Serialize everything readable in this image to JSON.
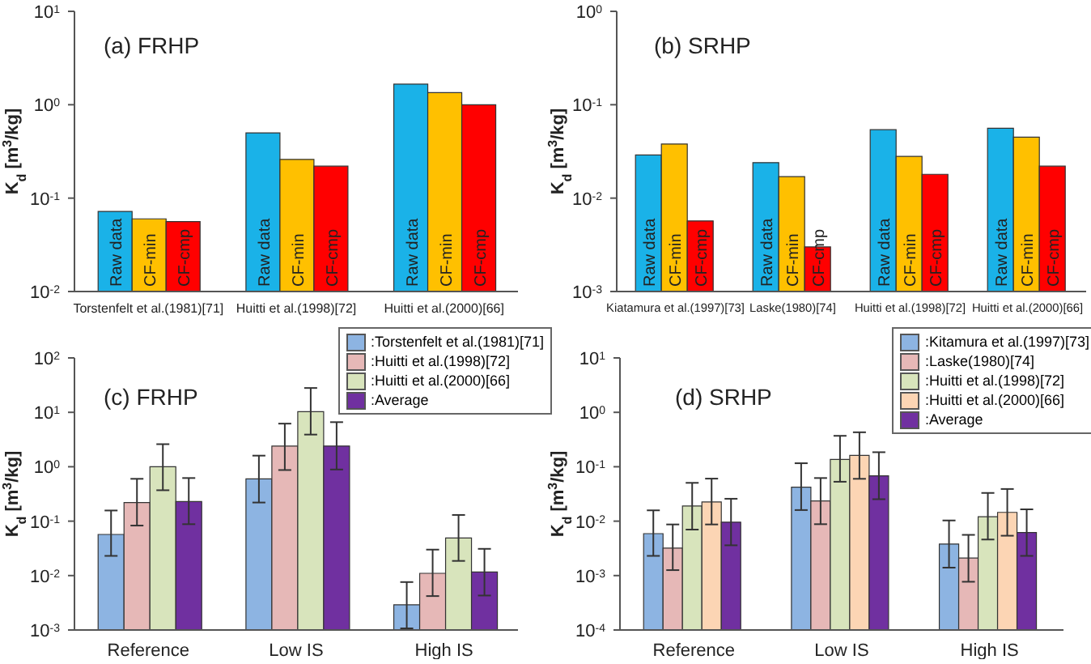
{
  "chart_data": [
    {
      "type": "bar",
      "title": "(a) FRHP",
      "ylabel": "K$_{d}$ [m$^{3}$/kg]",
      "categories": [
        "Torstenfelt et al.(1981)[71]",
        "Huitti et al.(1998)[72]",
        "Huitti et al.(2000)[66]"
      ],
      "series": [
        {
          "name": "Raw data",
          "color": "#1ab2e8",
          "values": [
            0.072,
            0.5,
            1.66
          ]
        },
        {
          "name": "CF-min",
          "color": "#ffc000",
          "values": [
            0.06,
            0.26,
            1.35
          ]
        },
        {
          "name": "CF-cmp",
          "color": "#ff0000",
          "values": [
            0.056,
            0.22,
            1.0
          ]
        }
      ],
      "log": "y",
      "ylim": [
        0.01,
        10
      ],
      "yticks": [
        {
          "value": 0.01,
          "label": "10$^{-2}$"
        },
        {
          "value": 0.1,
          "label": "10$^{-1}$"
        },
        {
          "value": 1,
          "label": "10$^{0}$"
        },
        {
          "value": 10,
          "label": "10$^{1}$"
        }
      ],
      "grid": false,
      "legend": false
    },
    {
      "type": "bar",
      "title": "(b) SRHP",
      "ylabel": "K$_{d}$ [m$^{3}$/kg]",
      "categories": [
        "Kiatamura et al.(1997)[73]",
        "Laske(1980)[74]",
        "Huitti et al.(1998)[72]",
        "Huitti et al.(2000)[66]"
      ],
      "series": [
        {
          "name": "Raw data",
          "color": "#1ab2e8",
          "values": [
            0.029,
            0.024,
            0.054,
            0.056
          ]
        },
        {
          "name": "CF-min",
          "color": "#ffc000",
          "values": [
            0.038,
            0.017,
            0.028,
            0.045
          ]
        },
        {
          "name": "CF-cmp",
          "color": "#ff0000",
          "values": [
            0.0057,
            0.003,
            0.018,
            0.022
          ]
        }
      ],
      "log": "y",
      "ylim": [
        0.001,
        1
      ],
      "yticks": [
        {
          "value": 0.001,
          "label": "10$^{-3}$"
        },
        {
          "value": 0.01,
          "label": "10$^{-2}$"
        },
        {
          "value": 0.1,
          "label": "10$^{-1}$"
        },
        {
          "value": 1,
          "label": "10$^{0}$"
        }
      ],
      "grid": false,
      "legend": false
    },
    {
      "type": "bar",
      "title": "(c) FRHP",
      "ylabel": "K$_{d}$ [m$^{3}$/kg]",
      "categories": [
        "Reference",
        "Low IS",
        "High IS"
      ],
      "series": [
        {
          "name": ":Torstenfelt et al.(1981)[71]",
          "color": "#8db4e2",
          "values": [
            0.057,
            0.6,
            0.0029
          ],
          "errors": [
            [
              0.023,
              0.157
            ],
            [
              0.22,
              1.6
            ],
            [
              0.00107,
              0.0076
            ]
          ]
        },
        {
          "name": ":Huitti et al.(1998)[72]",
          "color": "#e6b8b7",
          "values": [
            0.22,
            2.4,
            0.011
          ],
          "errors": [
            [
              0.083,
              0.6
            ],
            [
              0.87,
              6.2
            ],
            [
              0.0042,
              0.03
            ]
          ]
        },
        {
          "name": ":Huitti et al.(2000)[66]",
          "color": "#d8e4bc",
          "values": [
            1.0,
            10.3,
            0.049
          ],
          "errors": [
            [
              0.37,
              2.6
            ],
            [
              3.9,
              28
            ],
            [
              0.0186,
              0.13
            ]
          ]
        },
        {
          "name": ":Average",
          "color": "#7030a0",
          "values": [
            0.23,
            2.4,
            0.0116
          ],
          "errors": [
            [
              0.088,
              0.62
            ],
            [
              0.89,
              6.6
            ],
            [
              0.0043,
              0.031
            ]
          ]
        }
      ],
      "log": "y",
      "ylim": [
        0.001,
        100
      ],
      "yticks": [
        {
          "value": 0.001,
          "label": "10$^{-3}$"
        },
        {
          "value": 0.01,
          "label": "10$^{-2}$"
        },
        {
          "value": 0.1,
          "label": "10$^{-1}$"
        },
        {
          "value": 1,
          "label": "10$^{0}$"
        },
        {
          "value": 10,
          "label": "10$^{1}$"
        },
        {
          "value": 100,
          "label": "10$^{2}$"
        }
      ],
      "grid": false,
      "legend": "top right"
    },
    {
      "type": "bar",
      "title": "(d) SRHP",
      "ylabel": "K$_{d}$ [m$^{3}$/kg]",
      "categories": [
        "Reference",
        "Low IS",
        "High IS"
      ],
      "series": [
        {
          "name": ":Kitamura et al.(1997)[73]",
          "color": "#8db4e2",
          "values": [
            0.0059,
            0.042,
            0.0038
          ],
          "errors": [
            [
              0.0023,
              0.0158
            ],
            [
              0.016,
              0.116
            ],
            [
              0.0014,
              0.0103
            ]
          ]
        },
        {
          "name": ":Laske(1980)[74]",
          "color": "#e6b8b7",
          "values": [
            0.0032,
            0.0236,
            0.0021
          ],
          "errors": [
            [
              0.00126,
              0.0087
            ],
            [
              0.0088,
              0.062
            ],
            [
              0.00077,
              0.0056
            ]
          ]
        },
        {
          "name": ":Huitti et al.(1998)[72]",
          "color": "#d8e4bc",
          "values": [
            0.019,
            0.136,
            0.0121
          ],
          "errors": [
            [
              0.007,
              0.0506
            ],
            [
              0.053,
              0.37
            ],
            [
              0.0046,
              0.033
            ]
          ]
        },
        {
          "name": ":Huitti et al.(2000)[66]",
          "color": "#fcd5b4",
          "values": [
            0.0226,
            0.162,
            0.0145
          ],
          "errors": [
            [
              0.0087,
              0.0605
            ],
            [
              0.06,
              0.43
            ],
            [
              0.0054,
              0.039
            ]
          ]
        },
        {
          "name": ":Average",
          "color": "#7030a0",
          "values": [
            0.0096,
            0.068,
            0.0062
          ],
          "errors": [
            [
              0.0036,
              0.0258
            ],
            [
              0.0253,
              0.185
            ],
            [
              0.0023,
              0.0165
            ]
          ]
        }
      ],
      "log": "y",
      "ylim": [
        0.0001,
        10
      ],
      "yticks": [
        {
          "value": 0.0001,
          "label": "10$^{-4}$"
        },
        {
          "value": 0.001,
          "label": "10$^{-3}$"
        },
        {
          "value": 0.01,
          "label": "10$^{-2}$"
        },
        {
          "value": 0.1,
          "label": "10$^{-1}$"
        },
        {
          "value": 1,
          "label": "10$^{0}$"
        },
        {
          "value": 10,
          "label": "10$^{1}$"
        }
      ],
      "grid": false,
      "legend": "top right"
    }
  ]
}
